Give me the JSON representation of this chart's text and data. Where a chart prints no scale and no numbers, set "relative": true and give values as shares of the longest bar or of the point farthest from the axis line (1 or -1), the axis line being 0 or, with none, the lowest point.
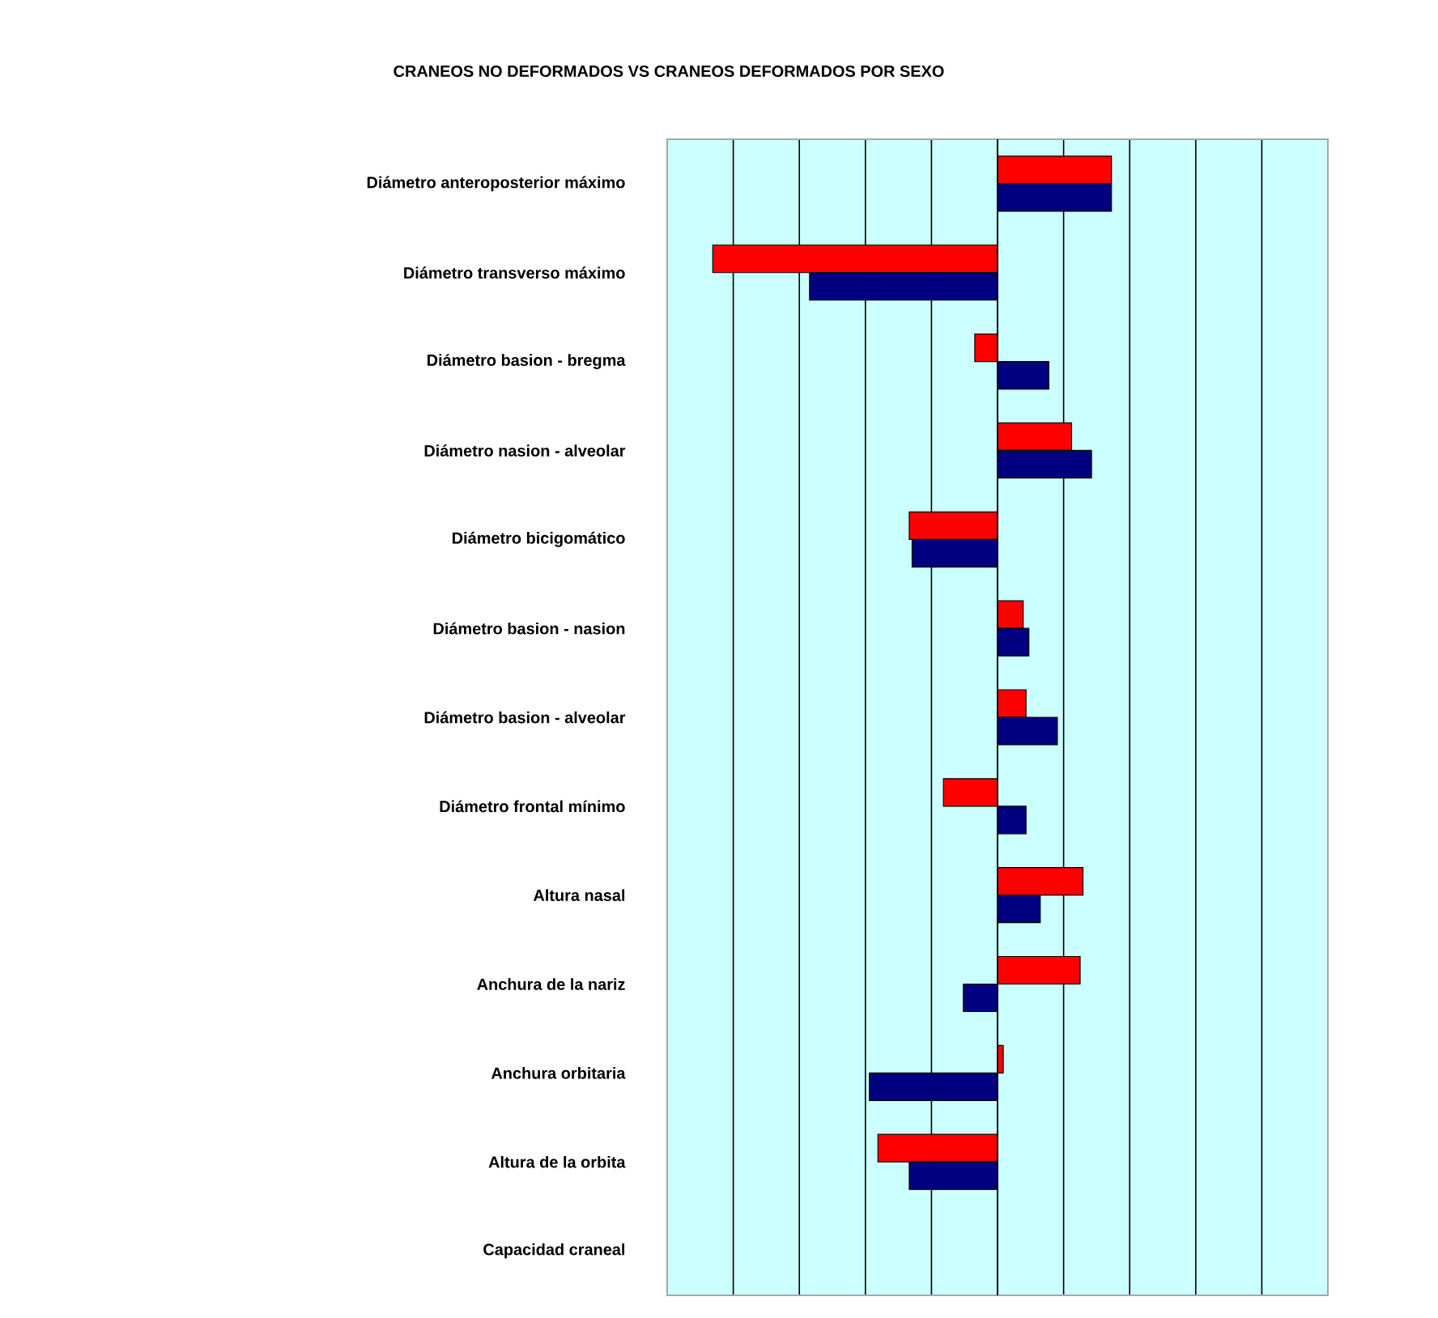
{
  "chart_data": {
    "type": "bar",
    "orientation": "horizontal",
    "relative": true,
    "grid": true,
    "title": "CRANEOS NO DEFORMADOS VS CRANEOS DEFORMADOS POR SEXO",
    "categories": [
      "Diámetro anteroposterior  máximo",
      "Diámetro transverso máximo",
      "Diámetro basion - bregma",
      "Diámetro nasion - alveolar",
      "Diámetro bicigomático",
      "Diámetro basion - nasion",
      "Diámetro basion - alveolar",
      "Diámetro frontal mínimo",
      "Altura nasal",
      "Anchura de la nariz",
      "Anchura orbitaria",
      "Altura de la orbita",
      "Capacidad craneal"
    ],
    "series": [
      {
        "color": "#ff0000",
        "values": [
          0.4,
          -1.0,
          -0.08,
          0.26,
          -0.31,
          0.09,
          0.1,
          -0.19,
          0.3,
          0.29,
          0.02,
          -0.42,
          null
        ]
      },
      {
        "color": "#000080",
        "values": [
          0.4,
          -0.66,
          0.18,
          0.33,
          -0.3,
          0.11,
          0.21,
          0.1,
          0.15,
          -0.12,
          -0.45,
          -0.31,
          null
        ]
      }
    ]
  }
}
